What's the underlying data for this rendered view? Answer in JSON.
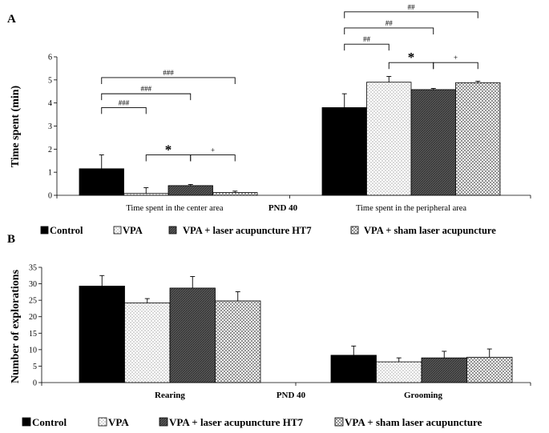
{
  "chart_data": [
    {
      "panel": "A",
      "type": "bar",
      "title": "",
      "ylabel": "Time spent (min)",
      "xlabel": "PND 40",
      "ylim": [
        0,
        6
      ],
      "yticks": [
        0,
        1,
        2,
        3,
        4,
        5,
        6
      ],
      "categories": [
        "Time  spent in the center area",
        "Time  spent  in the peripheral area"
      ],
      "series": [
        {
          "name": "Control",
          "pattern": "solid",
          "values": [
            1.15,
            3.8
          ],
          "errors": [
            0.6,
            0.6
          ]
        },
        {
          "name": "VPA",
          "pattern": "dots",
          "values": [
            0.08,
            4.9
          ],
          "errors": [
            0.25,
            0.25
          ]
        },
        {
          "name": "VPA + laser acupuncture  HT7",
          "pattern": "dense",
          "values": [
            0.42,
            4.58
          ],
          "errors": [
            0.05,
            0.05
          ]
        },
        {
          "name": "VPA + sham laser acupuncture",
          "pattern": "hatch",
          "values": [
            0.12,
            4.88
          ],
          "errors": [
            0.06,
            0.06
          ]
        }
      ],
      "annotations": [
        {
          "category": 0,
          "from": 0,
          "to": 1,
          "label": "###",
          "level": 3.8
        },
        {
          "category": 0,
          "from": 0,
          "to": 2,
          "label": "###",
          "level": 4.4
        },
        {
          "category": 0,
          "from": 0,
          "to": 3,
          "label": "###",
          "level": 5.1
        },
        {
          "category": 0,
          "from": 1,
          "to": 2,
          "label": "*",
          "level": 1.75
        },
        {
          "category": 0,
          "from": 2,
          "to": 3,
          "label": "+",
          "level": 1.75
        },
        {
          "category": 1,
          "from": 0,
          "to": 1,
          "label": "##",
          "level": 6.55
        },
        {
          "category": 1,
          "from": 0,
          "to": 2,
          "label": "##",
          "level": 7.25
        },
        {
          "category": 1,
          "from": 0,
          "to": 3,
          "label": "##",
          "level": 7.95
        },
        {
          "category": 1,
          "from": 1,
          "to": 2,
          "label": "*",
          "level": 5.75
        },
        {
          "category": 1,
          "from": 2,
          "to": 3,
          "label": "+",
          "level": 5.75
        }
      ]
    },
    {
      "panel": "B",
      "type": "bar",
      "title": "",
      "ylabel": "Number of explorations",
      "xlabel": "PND 40",
      "ylim": [
        0,
        35
      ],
      "yticks": [
        0,
        5,
        10,
        15,
        20,
        25,
        30,
        35
      ],
      "categories": [
        "Rearing",
        "Grooming"
      ],
      "series": [
        {
          "name": "Control",
          "pattern": "solid",
          "values": [
            29.3,
            8.3
          ],
          "errors": [
            3.2,
            2.8
          ]
        },
        {
          "name": "VPA",
          "pattern": "dots",
          "values": [
            24.2,
            6.3
          ],
          "errors": [
            1.3,
            1.2
          ]
        },
        {
          "name": "VPA + laser acupuncture  HT7",
          "pattern": "dense",
          "values": [
            28.7,
            7.5
          ],
          "errors": [
            3.5,
            2.0
          ]
        },
        {
          "name": "VPA + sham laser acupuncture",
          "pattern": "hatch",
          "values": [
            24.8,
            7.7
          ],
          "errors": [
            2.8,
            2.5
          ]
        }
      ],
      "annotations": []
    }
  ]
}
